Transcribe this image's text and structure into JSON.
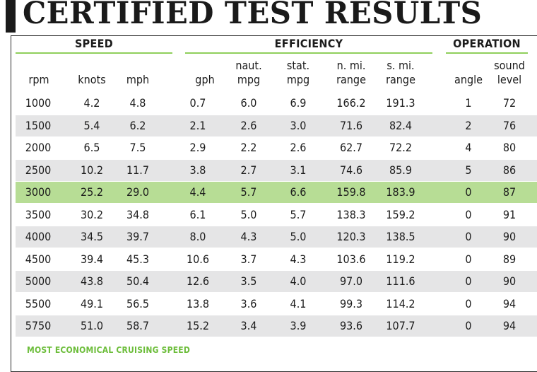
{
  "title": "CERTIFIED TEST RESULTS",
  "groups": {
    "speed": "SPEED",
    "efficiency": "EFFICIENCY",
    "operation": "OPERATION"
  },
  "headers": {
    "rpm": "rpm",
    "knots": "knots",
    "mph": "mph",
    "gph": "gph",
    "naut_mpg_1": "naut.",
    "naut_mpg_2": "mpg",
    "stat_mpg_1": "stat.",
    "stat_mpg_2": "mpg",
    "nmi_range_1": "n. mi.",
    "nmi_range_2": "range",
    "smi_range_1": "s. mi.",
    "smi_range_2": "range",
    "angle": "angle",
    "sound_1": "sound",
    "sound_2": "level"
  },
  "rows": [
    [
      "1000",
      "4.2",
      "4.8",
      "0.7",
      "6.0",
      "6.9",
      "166.2",
      "191.3",
      "1",
      "72"
    ],
    [
      "1500",
      "5.4",
      "6.2",
      "2.1",
      "2.6",
      "3.0",
      "71.6",
      "82.4",
      "2",
      "76"
    ],
    [
      "2000",
      "6.5",
      "7.5",
      "2.9",
      "2.2",
      "2.6",
      "62.7",
      "72.2",
      "4",
      "80"
    ],
    [
      "2500",
      "10.2",
      "11.7",
      "3.8",
      "2.7",
      "3.1",
      "74.6",
      "85.9",
      "5",
      "86"
    ],
    [
      "3000",
      "25.2",
      "29.0",
      "4.4",
      "5.7",
      "6.6",
      "159.8",
      "183.9",
      "0",
      "87"
    ],
    [
      "3500",
      "30.2",
      "34.8",
      "6.1",
      "5.0",
      "5.7",
      "138.3",
      "159.2",
      "0",
      "91"
    ],
    [
      "4000",
      "34.5",
      "39.7",
      "8.0",
      "4.3",
      "5.0",
      "120.3",
      "138.5",
      "0",
      "90"
    ],
    [
      "4500",
      "39.4",
      "45.3",
      "10.6",
      "3.7",
      "4.3",
      "103.6",
      "119.2",
      "0",
      "89"
    ],
    [
      "5000",
      "43.8",
      "50.4",
      "12.6",
      "3.5",
      "4.0",
      "97.0",
      "111.6",
      "0",
      "90"
    ],
    [
      "5500",
      "49.1",
      "56.5",
      "13.8",
      "3.6",
      "4.1",
      "99.3",
      "114.2",
      "0",
      "94"
    ],
    [
      "5750",
      "51.0",
      "58.7",
      "15.2",
      "3.4",
      "3.9",
      "93.6",
      "107.7",
      "0",
      "94"
    ]
  ],
  "highlight_row_rpm": "3000",
  "highlight_color": "#b7dd95",
  "shade_color": "#e5e5e6",
  "accent_color": "#8fcf5c",
  "footnote": "MOST ECONOMICAL CRUISING SPEED"
}
